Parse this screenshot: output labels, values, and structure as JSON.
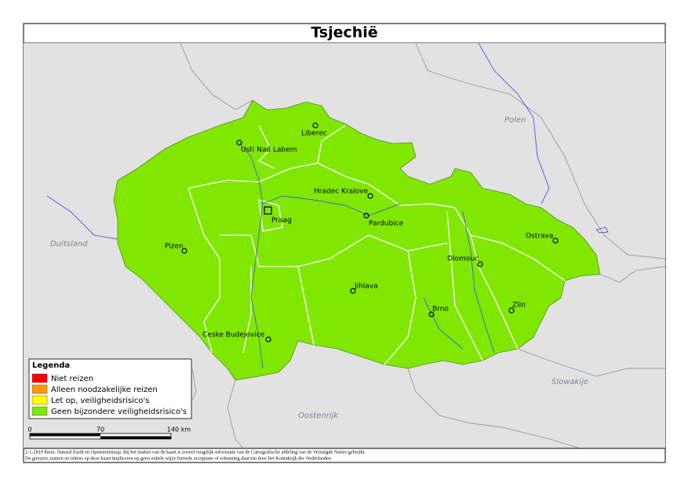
{
  "title": "Tsjechië",
  "cities": [
    "Liberec",
    "Usti Nad Labem",
    "Hradec Kralove",
    "Praag",
    "Pardubice",
    "Ostrava",
    "Pizen",
    "Olomouc",
    "Jihlava",
    "Brno",
    "Zlin",
    "Ceske Budejovice"
  ],
  "countries": [
    "Duitsland",
    "Polen",
    "Slowakije",
    "Oostenrijk"
  ],
  "legend": {
    "title": "Legenda",
    "items": [
      {
        "label": "Niet reizen",
        "color": "#ff0000"
      },
      {
        "label": "Alleen noodzakelijke reizen",
        "color": "#ff9900"
      },
      {
        "label": "Let op, veiligheidsrisico's",
        "color": "#ffff00"
      },
      {
        "label": "Geen bijzondere veiligheidsrisico's",
        "color": "#80e800"
      }
    ]
  },
  "scale": [
    "0",
    "70",
    "140 km"
  ],
  "footer": [
    "2-1-2019 Bron: Natural Earth en Openstreetmap. Bij het maken van de kaart is zoveel mogelijk informatie van de Cartografische afdeling van de Verenigde Naties gebruikt.",
    "De grenzen, namen en tekens op deze kaart impliceren op geen enkele wijze formele acceptatie of erkenning daarvan door het Koninkrijk der Nederlanden."
  ]
}
